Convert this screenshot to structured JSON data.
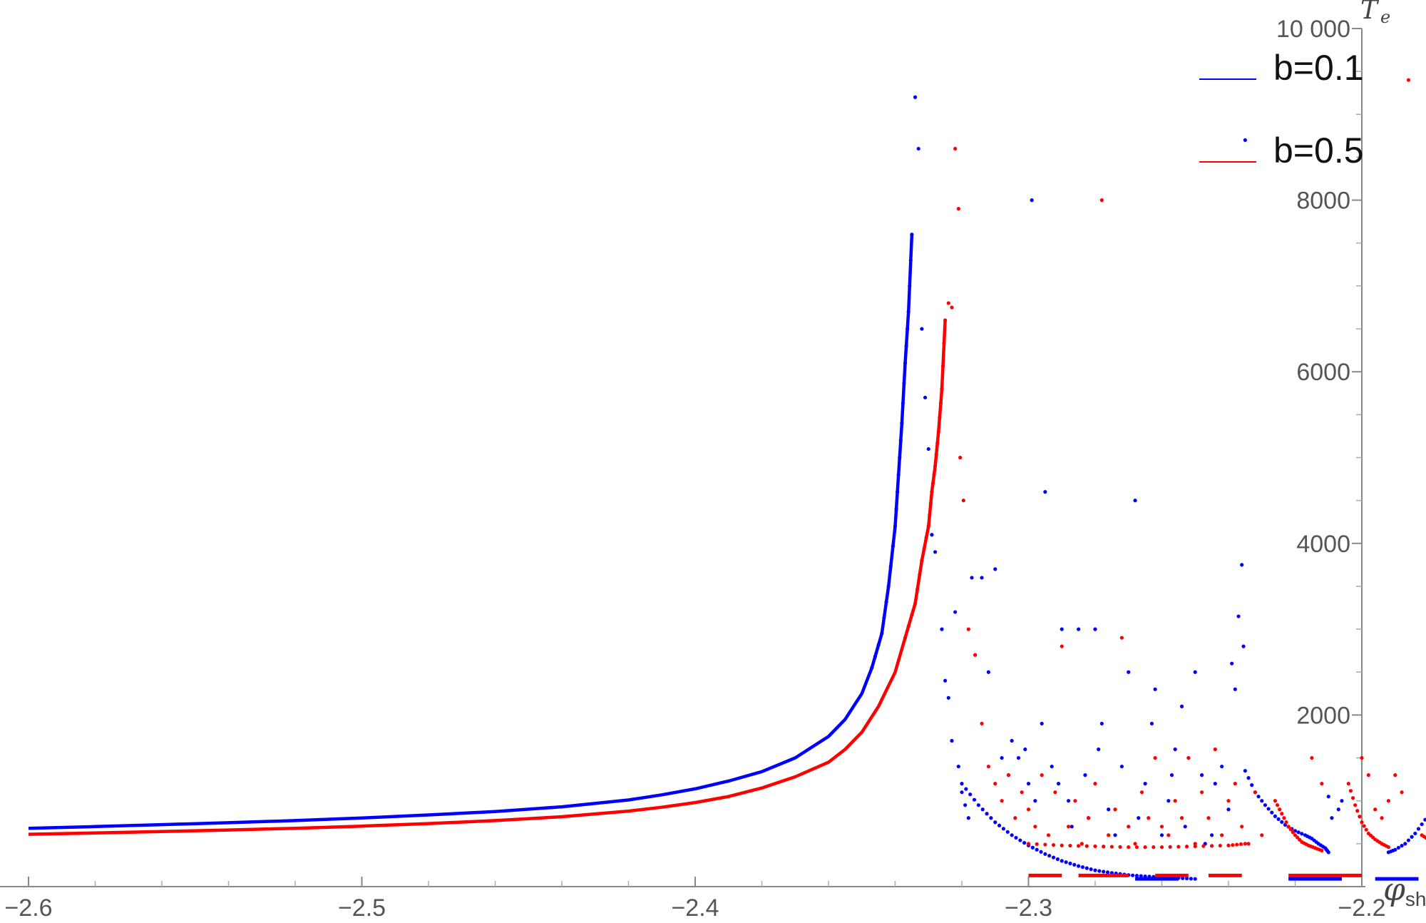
{
  "chart_data": {
    "type": "scatter",
    "xlabel": "φ",
    "xlabel_sub": "sh",
    "ylabel": "T",
    "ylabel_sub": "e",
    "xlim": [
      -2.6,
      -2.2
    ],
    "ylim": [
      0,
      10000
    ],
    "xticks": [
      {
        "value": -2.6,
        "label": "−2.6"
      },
      {
        "value": -2.5,
        "label": "−2.5"
      },
      {
        "value": -2.4,
        "label": "−2.4"
      },
      {
        "value": -2.3,
        "label": "−2.3"
      },
      {
        "value": -2.2,
        "label": "−2.2"
      }
    ],
    "yticks": [
      {
        "value": 2000,
        "label": "2000"
      },
      {
        "value": 4000,
        "label": "4000"
      },
      {
        "value": 6000,
        "label": "6000"
      },
      {
        "value": 8000,
        "label": "8000"
      },
      {
        "value": 10000,
        "label": "10 000"
      }
    ],
    "grid": false,
    "legend_position": "top-right",
    "series": [
      {
        "name": "b=0.1",
        "color": "#0000ff",
        "curve": [
          [
            -2.6,
            680
          ],
          [
            -2.58,
            700
          ],
          [
            -2.56,
            722
          ],
          [
            -2.54,
            745
          ],
          [
            -2.52,
            770
          ],
          [
            -2.5,
            800
          ],
          [
            -2.48,
            835
          ],
          [
            -2.46,
            875
          ],
          [
            -2.44,
            930
          ],
          [
            -2.42,
            1010
          ],
          [
            -2.41,
            1070
          ],
          [
            -2.4,
            1140
          ],
          [
            -2.39,
            1230
          ],
          [
            -2.38,
            1340
          ],
          [
            -2.37,
            1500
          ],
          [
            -2.36,
            1750
          ],
          [
            -2.355,
            1950
          ],
          [
            -2.35,
            2250
          ],
          [
            -2.347,
            2550
          ],
          [
            -2.344,
            2950
          ],
          [
            -2.342,
            3500
          ],
          [
            -2.34,
            4200
          ],
          [
            -2.339,
            4800
          ],
          [
            -2.338,
            5400
          ],
          [
            -2.337,
            6100
          ],
          [
            -2.336,
            6700
          ],
          [
            -2.335,
            7600
          ]
        ],
        "points": [
          [
            -2.334,
            9200
          ],
          [
            -2.333,
            8600
          ],
          [
            -2.332,
            6500
          ],
          [
            -2.331,
            5700
          ],
          [
            -2.33,
            5100
          ],
          [
            -2.329,
            4100
          ],
          [
            -2.328,
            3900
          ],
          [
            -2.326,
            3000
          ],
          [
            -2.325,
            2400
          ],
          [
            -2.324,
            2200
          ],
          [
            -2.323,
            1700
          ],
          [
            -2.322,
            3200
          ],
          [
            -2.321,
            1400
          ],
          [
            -2.32,
            1100
          ],
          [
            -2.319,
            950
          ],
          [
            -2.318,
            800
          ],
          [
            -2.317,
            3600
          ],
          [
            -2.316,
            2700
          ],
          [
            -2.314,
            3600
          ],
          [
            -2.312,
            2500
          ],
          [
            -2.31,
            3700
          ],
          [
            -2.308,
            1500
          ],
          [
            -2.306,
            1300
          ],
          [
            -2.305,
            1700
          ],
          [
            -2.303,
            1500
          ],
          [
            -2.301,
            1600
          ],
          [
            -2.3,
            1200
          ],
          [
            -2.299,
            8000
          ],
          [
            -2.298,
            1000
          ],
          [
            -2.296,
            1900
          ],
          [
            -2.295,
            4600
          ],
          [
            -2.293,
            1400
          ],
          [
            -2.291,
            1200
          ],
          [
            -2.29,
            3000
          ],
          [
            -2.288,
            1000
          ],
          [
            -2.287,
            700
          ],
          [
            -2.285,
            3000
          ],
          [
            -2.283,
            1300
          ],
          [
            -2.282,
            800
          ],
          [
            -2.28,
            3000
          ],
          [
            -2.279,
            1600
          ],
          [
            -2.278,
            1900
          ],
          [
            -2.276,
            900
          ],
          [
            -2.274,
            600
          ],
          [
            -2.272,
            1400
          ],
          [
            -2.27,
            2500
          ],
          [
            -2.268,
            4500
          ],
          [
            -2.267,
            800
          ],
          [
            -2.265,
            1200
          ],
          [
            -2.263,
            1900
          ],
          [
            -2.262,
            2300
          ],
          [
            -2.26,
            600
          ],
          [
            -2.258,
            1000
          ],
          [
            -2.257,
            1300
          ],
          [
            -2.256,
            1600
          ],
          [
            -2.254,
            2100
          ],
          [
            -2.253,
            700
          ],
          [
            -2.252,
            1500
          ],
          [
            -2.25,
            2500
          ],
          [
            -2.248,
            1300
          ],
          [
            -2.247,
            500
          ],
          [
            -2.245,
            600
          ],
          [
            -2.244,
            1200
          ],
          [
            -2.242,
            1400
          ],
          [
            -2.24,
            900
          ],
          [
            -2.239,
            2600
          ],
          [
            -2.238,
            2300
          ],
          [
            -2.237,
            3150
          ],
          [
            -2.236,
            3750
          ],
          [
            -2.2355,
            2800
          ],
          [
            -2.235,
            8700
          ],
          [
            -2.21,
            1050
          ],
          [
            -2.209,
            800
          ],
          [
            -2.207,
            900
          ],
          [
            -2.206,
            1000
          ]
        ],
        "lower_curve": [
          [
            -2.32,
            1200
          ],
          [
            -2.315,
            950
          ],
          [
            -2.31,
            750
          ],
          [
            -2.305,
            600
          ],
          [
            -2.3,
            480
          ],
          [
            -2.295,
            380
          ],
          [
            -2.29,
            300
          ],
          [
            -2.285,
            240
          ],
          [
            -2.28,
            190
          ],
          [
            -2.275,
            160
          ],
          [
            -2.27,
            135
          ],
          [
            -2.265,
            120
          ],
          [
            -2.26,
            110
          ],
          [
            -2.255,
            100
          ],
          [
            -2.25,
            90
          ]
        ],
        "recovery_curves": [
          [
            [
              -2.235,
              1350
            ],
            [
              -2.232,
              1100
            ],
            [
              -2.229,
              950
            ],
            [
              -2.226,
              820
            ],
            [
              -2.223,
              720
            ],
            [
              -2.22,
              650
            ],
            [
              -2.217,
              600
            ],
            [
              -2.215,
              560
            ],
            [
              -2.213,
              500
            ],
            [
              -2.211,
              450
            ],
            [
              -2.21,
              400
            ]
          ],
          [
            [
              -2.192,
              400
            ],
            [
              -2.19,
              430
            ],
            [
              -2.187,
              500
            ],
            [
              -2.184,
              620
            ],
            [
              -2.181,
              780
            ],
            [
              -2.178,
              950
            ],
            [
              -2.175,
              1150
            ],
            [
              -2.172,
              1400
            ],
            [
              -2.17,
              1650
            ]
          ]
        ],
        "floor_segments": [
          [
            -2.268,
            -2.255
          ],
          [
            -2.222,
            -2.206
          ],
          [
            -2.196,
            -2.183
          ]
        ]
      },
      {
        "name": "b=0.5",
        "color": "#ff0000",
        "curve": [
          [
            -2.6,
            610
          ],
          [
            -2.58,
            625
          ],
          [
            -2.56,
            642
          ],
          [
            -2.54,
            660
          ],
          [
            -2.52,
            680
          ],
          [
            -2.5,
            705
          ],
          [
            -2.48,
            735
          ],
          [
            -2.46,
            770
          ],
          [
            -2.44,
            815
          ],
          [
            -2.42,
            880
          ],
          [
            -2.41,
            925
          ],
          [
            -2.4,
            980
          ],
          [
            -2.39,
            1050
          ],
          [
            -2.38,
            1150
          ],
          [
            -2.37,
            1280
          ],
          [
            -2.36,
            1450
          ],
          [
            -2.355,
            1600
          ],
          [
            -2.35,
            1800
          ],
          [
            -2.345,
            2100
          ],
          [
            -2.34,
            2500
          ],
          [
            -2.337,
            2900
          ],
          [
            -2.334,
            3300
          ],
          [
            -2.332,
            3800
          ],
          [
            -2.33,
            4200
          ],
          [
            -2.329,
            4600
          ],
          [
            -2.328,
            4900
          ],
          [
            -2.327,
            5300
          ],
          [
            -2.326,
            5800
          ],
          [
            -2.325,
            6600
          ]
        ],
        "points": [
          [
            -2.324,
            6800
          ],
          [
            -2.323,
            6750
          ],
          [
            -2.322,
            8600
          ],
          [
            -2.321,
            7900
          ],
          [
            -2.3205,
            5000
          ],
          [
            -2.3195,
            4500
          ],
          [
            -2.318,
            3000
          ],
          [
            -2.316,
            2700
          ],
          [
            -2.314,
            1900
          ],
          [
            -2.312,
            1400
          ],
          [
            -2.31,
            1200
          ],
          [
            -2.308,
            1000
          ],
          [
            -2.306,
            1300
          ],
          [
            -2.304,
            800
          ],
          [
            -2.302,
            1100
          ],
          [
            -2.3,
            900
          ],
          [
            -2.298,
            700
          ],
          [
            -2.296,
            1300
          ],
          [
            -2.294,
            600
          ],
          [
            -2.292,
            1100
          ],
          [
            -2.29,
            2800
          ],
          [
            -2.288,
            700
          ],
          [
            -2.286,
            1000
          ],
          [
            -2.284,
            500
          ],
          [
            -2.282,
            800
          ],
          [
            -2.28,
            1200
          ],
          [
            -2.278,
            8000
          ],
          [
            -2.276,
            600
          ],
          [
            -2.274,
            900
          ],
          [
            -2.272,
            2900
          ],
          [
            -2.27,
            700
          ],
          [
            -2.268,
            500
          ],
          [
            -2.266,
            1100
          ],
          [
            -2.264,
            800
          ],
          [
            -2.262,
            1500
          ],
          [
            -2.26,
            700
          ],
          [
            -2.258,
            600
          ],
          [
            -2.256,
            1000
          ],
          [
            -2.254,
            800
          ],
          [
            -2.252,
            1500
          ],
          [
            -2.25,
            500
          ],
          [
            -2.248,
            1100
          ],
          [
            -2.246,
            800
          ],
          [
            -2.244,
            1600
          ],
          [
            -2.242,
            600
          ],
          [
            -2.24,
            1000
          ],
          [
            -2.238,
            1200
          ],
          [
            -2.236,
            700
          ],
          [
            -2.234,
            500
          ],
          [
            -2.232,
            1100
          ],
          [
            -2.23,
            600
          ],
          [
            -2.215,
            1500
          ],
          [
            -2.212,
            1200
          ],
          [
            -2.2,
            1500
          ],
          [
            -2.198,
            1300
          ],
          [
            -2.196,
            900
          ],
          [
            -2.194,
            800
          ],
          [
            -2.192,
            1000
          ],
          [
            -2.19,
            1300
          ],
          [
            -2.188,
            1100
          ],
          [
            -2.186,
            9400
          ]
        ],
        "lower_curve": [
          [
            -2.3,
            500
          ],
          [
            -2.29,
            480
          ],
          [
            -2.28,
            470
          ],
          [
            -2.27,
            460
          ],
          [
            -2.26,
            460
          ],
          [
            -2.25,
            470
          ],
          [
            -2.24,
            480
          ],
          [
            -2.235,
            500
          ]
        ],
        "recovery_curves": [
          [
            [
              -2.226,
              1000
            ],
            [
              -2.224,
              850
            ],
            [
              -2.222,
              700
            ],
            [
              -2.22,
              600
            ],
            [
              -2.218,
              520
            ],
            [
              -2.216,
              480
            ],
            [
              -2.214,
              450
            ],
            [
              -2.212,
              420
            ]
          ],
          [
            [
              -2.204,
              1200
            ],
            [
              -2.202,
              950
            ],
            [
              -2.2,
              750
            ],
            [
              -2.198,
              620
            ],
            [
              -2.196,
              550
            ],
            [
              -2.194,
              500
            ],
            [
              -2.192,
              460
            ]
          ],
          [
            [
              -2.182,
              600
            ],
            [
              -2.18,
              550
            ],
            [
              -2.178,
              500
            ],
            [
              -2.176,
              460
            ],
            [
              -2.174,
              430
            ],
            [
              -2.172,
              400
            ]
          ]
        ],
        "floor_segments": [
          [
            -2.3,
            -2.29
          ],
          [
            -2.285,
            -2.27
          ],
          [
            -2.262,
            -2.252
          ],
          [
            -2.246,
            -2.236
          ],
          [
            -2.222,
            -2.2
          ]
        ]
      }
    ]
  }
}
